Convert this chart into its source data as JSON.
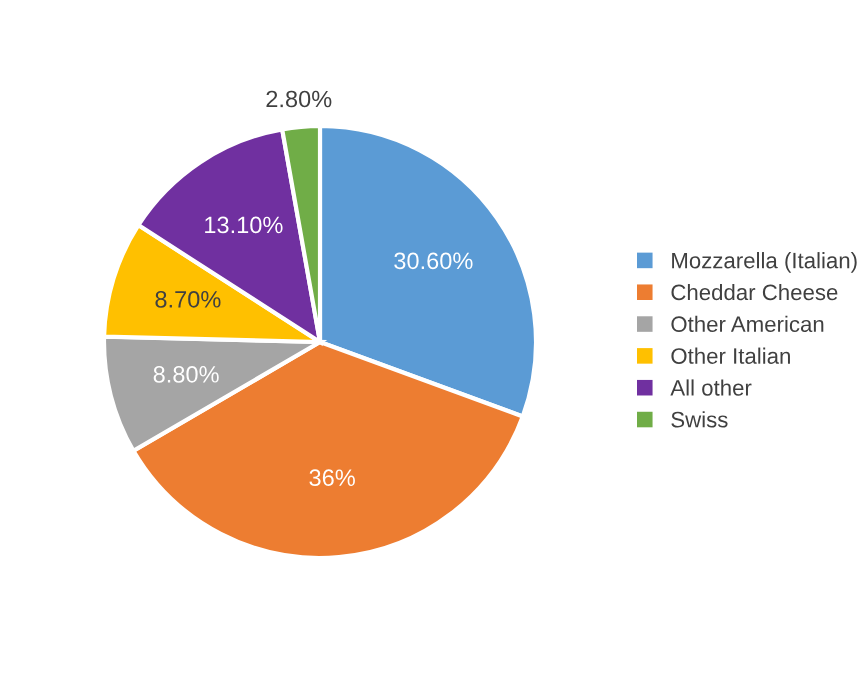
{
  "chart_data": {
    "type": "pie",
    "categories": [
      "Mozzarella (Italian)",
      "Cheddar Cheese",
      "Other American",
      "Other Italian",
      "All other",
      "Swiss"
    ],
    "values": [
      30.6,
      36,
      8.8,
      8.7,
      13.1,
      2.8
    ],
    "colors": [
      "#5b9bd5",
      "#ed7d31",
      "#a5a5a5",
      "#ffc000",
      "#7030a0",
      "#70ad47"
    ],
    "value_labels": [
      "30.60%",
      "36%",
      "8.80%",
      "8.70%",
      "13.10%",
      "2.80%"
    ],
    "legend": "right"
  }
}
